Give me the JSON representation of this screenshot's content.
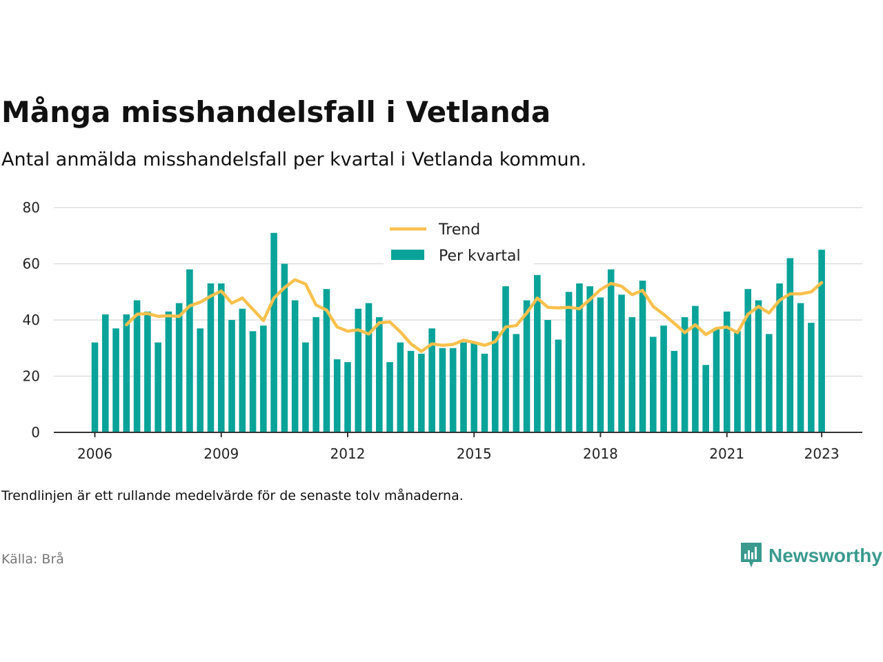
{
  "title": "Många misshandelsfall i Vetlanda",
  "subtitle": "Antal anmälda misshandelsfall per kvartal i Vetlanda kommun.",
  "note": "Trendlinjen är ett rullande medelvärde för de senaste tolv månaderna.",
  "source": "Källa: Brå",
  "brand": {
    "name": "Newsworthy",
    "icon": "newsworthy-logo-icon",
    "color": "#3a9a8e"
  },
  "colors": {
    "bars": "#0aa39a",
    "trend": "#f9c04c",
    "grid": "#dddddd",
    "axis": "#333333"
  },
  "chart_data": {
    "type": "bar",
    "x_label": "",
    "y_label": "",
    "ylim": [
      0,
      80
    ],
    "yticks": [
      0,
      20,
      40,
      60,
      80
    ],
    "xticks": [
      {
        "label": "2006",
        "index": 0
      },
      {
        "label": "2009",
        "index": 12
      },
      {
        "label": "2012",
        "index": 24
      },
      {
        "label": "2015",
        "index": 36
      },
      {
        "label": "2018",
        "index": 48
      },
      {
        "label": "2021",
        "index": 60
      },
      {
        "label": "2023",
        "index": 69
      }
    ],
    "grid": true,
    "legend": {
      "position": "top-center",
      "entries": [
        "Trend",
        "Per kvartal"
      ]
    },
    "series": [
      {
        "name": "Per kvartal",
        "type": "bar",
        "values": [
          32,
          42,
          37,
          42,
          47,
          43,
          32,
          43,
          46,
          58,
          37,
          53,
          53,
          40,
          44,
          36,
          38,
          71,
          60,
          47,
          32,
          41,
          51,
          26,
          25,
          44,
          46,
          41,
          25,
          32,
          29,
          28,
          37,
          30,
          30,
          32,
          32,
          28,
          36,
          52,
          35,
          47,
          56,
          40,
          33,
          50,
          53,
          52,
          48,
          58,
          49,
          41,
          54,
          34,
          38,
          29,
          41,
          45,
          24,
          37,
          43,
          36,
          51,
          47,
          35,
          53,
          62,
          46,
          39,
          65
        ]
      },
      {
        "name": "Trend",
        "type": "line",
        "start_index": 3,
        "values": [
          38.3,
          42,
          42.3,
          41.3,
          41.5,
          41.3,
          45,
          46.3,
          48.5,
          50.3,
          46,
          47.8,
          43.8,
          39.8,
          47.8,
          51.5,
          54.3,
          52.8,
          45.3,
          43.5,
          37.5,
          36,
          36.5,
          35,
          39,
          39.3,
          35.8,
          31.5,
          28.8,
          31.5,
          31,
          31.3,
          32.8,
          32,
          31,
          32.3,
          37.5,
          38,
          42.5,
          47.8,
          44.5,
          44.3,
          44.5,
          44,
          47.3,
          50.8,
          53,
          52,
          49,
          50.5,
          44.8,
          42,
          38.8,
          35.5,
          38.3,
          34.8,
          37,
          37.5,
          35.5,
          42,
          44.8,
          42.5,
          47,
          49.3,
          49.3,
          50,
          53.3
        ]
      }
    ]
  }
}
